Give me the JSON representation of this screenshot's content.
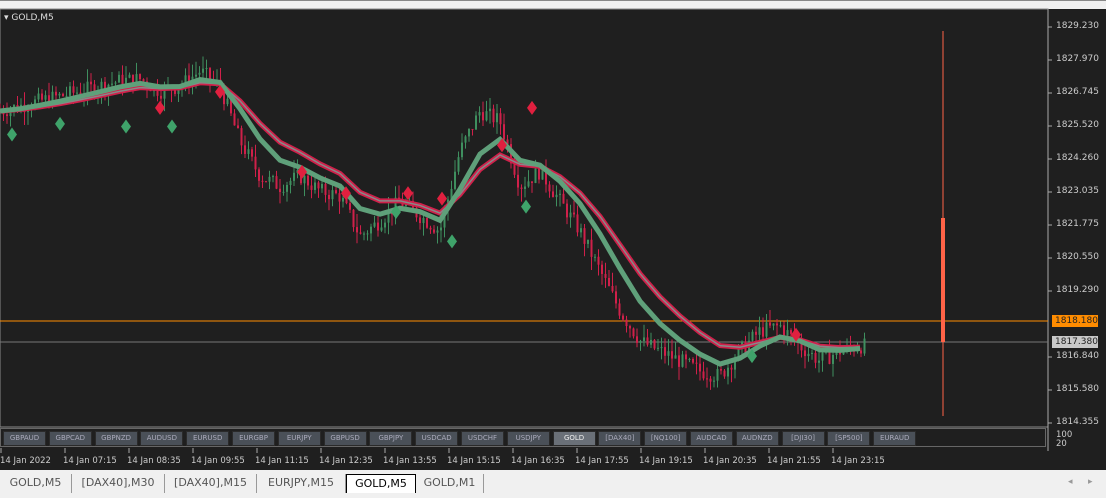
{
  "chart_title": "GOLD,M5",
  "price_axis": [
    "1829.230",
    "1827.970",
    "1826.745",
    "1825.520",
    "1824.260",
    "1823.035",
    "1821.775",
    "1820.550",
    "1819.290",
    "1816.840",
    "1815.580",
    "1814.355"
  ],
  "ask_price": "1818.180",
  "bid_price": "1817.380",
  "indicator_levels": [
    "100",
    "20"
  ],
  "symbol_buttons": [
    "GBPAUD",
    "GBPCAD",
    "GBPNZD",
    "AUDUSD",
    "EURUSD",
    "EURGBP",
    "EURJPY",
    "GBPUSD",
    "GBPJPY",
    "USDCAD",
    "USDCHF",
    "USDJPY",
    "GOLD",
    "[DAX40]",
    "[NQ100]",
    "AUDCAD",
    "AUDNZD",
    "[DJI30]",
    "[SP500]",
    "EURAUD"
  ],
  "active_symbol": "GOLD",
  "time_axis": [
    "14 Jan 2022",
    "14 Jan 07:15",
    "14 Jan 08:35",
    "14 Jan 09:55",
    "14 Jan 11:15",
    "14 Jan 12:35",
    "14 Jan 13:55",
    "14 Jan 15:15",
    "14 Jan 16:35",
    "14 Jan 17:55",
    "14 Jan 19:15",
    "14 Jan 20:35",
    "14 Jan 21:55",
    "14 Jan 23:15"
  ],
  "tabs": [
    "GOLD,M5",
    "[DAX40],M30",
    "[DAX40],M15",
    "EURJPY,M15",
    "GOLD,M5",
    "GOLD,M1"
  ],
  "active_tab": 4,
  "colors": {
    "bull": "#3f8f5f",
    "bear": "#d0204a",
    "ma": "#5fa07a",
    "ask_line": "#ff8c00",
    "volume_bar": "#ff6347"
  },
  "chart_data": {
    "type": "candlestick",
    "ylim": [
      1814.355,
      1829.23
    ],
    "closes": [
      1826.08,
      1826.27,
      1826.46,
      1826.64,
      1826.83,
      1827.02,
      1827.21,
      1827.28,
      1826.83,
      1827.02,
      1827.58,
      1827.02,
      1824.96,
      1823.65,
      1823.27,
      1823.65,
      1823.09,
      1822.9,
      1821.4,
      1821.96,
      1822.71,
      1822.15,
      1821.59,
      1824.58,
      1826.08,
      1825.7,
      1823.27,
      1823.83,
      1822.71,
      1821.59,
      1820.09,
      1818.59,
      1817.47,
      1817.09,
      1816.72,
      1816.34,
      1816.15,
      1817.09,
      1817.84,
      1818.03,
      1817.28,
      1816.72,
      1817.09,
      1817.28
    ],
    "signals": [
      {
        "i": 0.6,
        "p": 1825.2,
        "t": "buy"
      },
      {
        "i": 3,
        "p": 1825.6,
        "t": "buy"
      },
      {
        "i": 6.3,
        "p": 1825.5,
        "t": "buy"
      },
      {
        "i": 8.6,
        "p": 1825.5,
        "t": "buy"
      },
      {
        "i": 8,
        "p": 1826.2,
        "t": "sell"
      },
      {
        "i": 11,
        "p": 1826.8,
        "t": "sell"
      },
      {
        "i": 15.1,
        "p": 1823.8,
        "t": "sell"
      },
      {
        "i": 17.3,
        "p": 1823.0,
        "t": "sell"
      },
      {
        "i": 19.8,
        "p": 1822.3,
        "t": "buy"
      },
      {
        "i": 20.4,
        "p": 1823.0,
        "t": "sell"
      },
      {
        "i": 22.1,
        "p": 1822.8,
        "t": "sell"
      },
      {
        "i": 22.6,
        "p": 1821.2,
        "t": "buy"
      },
      {
        "i": 25.1,
        "p": 1824.8,
        "t": "sell"
      },
      {
        "i": 26.3,
        "p": 1822.5,
        "t": "buy"
      },
      {
        "i": 26.6,
        "p": 1826.2,
        "t": "sell"
      },
      {
        "i": 37.6,
        "p": 1816.9,
        "t": "buy"
      },
      {
        "i": 39.8,
        "p": 1817.7,
        "t": "sell"
      }
    ]
  }
}
